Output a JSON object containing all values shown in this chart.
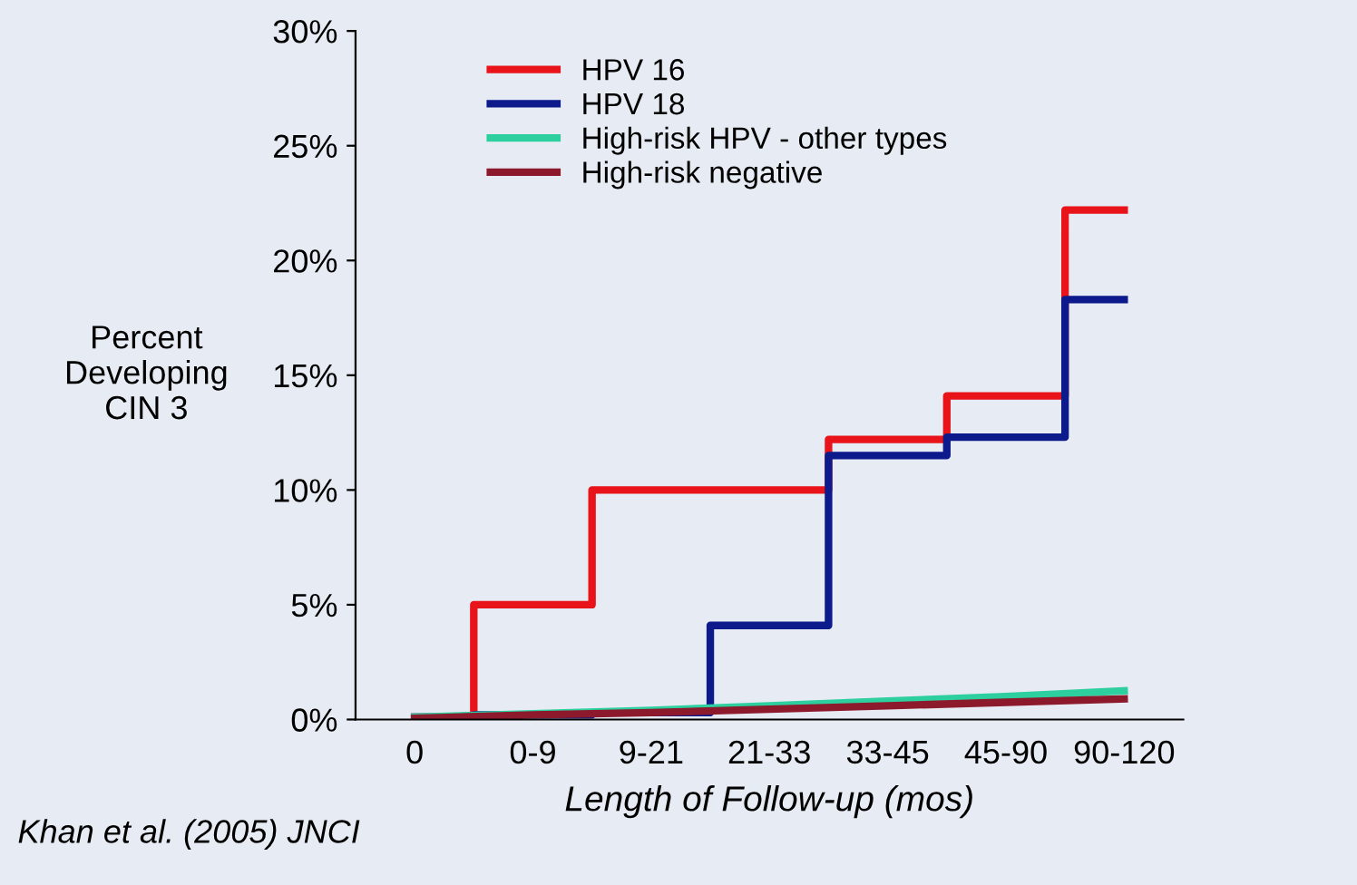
{
  "chart_data": {
    "type": "step",
    "ylabel": "Percent\nDeveloping\nCIN 3",
    "xlabel": "Length of Follow-up (mos)",
    "categories": [
      "0",
      "0-9",
      "9-21",
      "21-33",
      "33-45",
      "45-90",
      "90-120"
    ],
    "series": [
      {
        "name": "HPV 16",
        "color": "#e8141a",
        "values": [
          0.1,
          5,
          10,
          10,
          12.2,
          14.1,
          22.2
        ]
      },
      {
        "name": "HPV 18",
        "color": "#0c1a8c",
        "values": [
          0.1,
          0.2,
          0.3,
          4.1,
          11.5,
          12.3,
          18.3
        ]
      },
      {
        "name": "High-risk HPV - other types",
        "type": "line",
        "color": "#2ecf9f",
        "values": [
          0.1,
          0.25,
          0.4,
          0.6,
          0.8,
          1.0,
          1.25
        ]
      },
      {
        "name": "High-risk negative",
        "type": "line",
        "color": "#8c1a2c",
        "values": [
          0.05,
          0.2,
          0.3,
          0.45,
          0.6,
          0.75,
          0.9
        ]
      }
    ],
    "ylim": [
      0,
      30
    ],
    "yticks": [
      {
        "value": 0,
        "label": "0%"
      },
      {
        "value": 5,
        "label": "5%"
      },
      {
        "value": 10,
        "label": "10%"
      },
      {
        "value": 15,
        "label": "15%"
      },
      {
        "value": 20,
        "label": "20%"
      },
      {
        "value": 25,
        "label": "25%"
      },
      {
        "value": 30,
        "label": "30%"
      }
    ],
    "legend": "top left",
    "grid": false,
    "annotations": [
      "Khan et al. (2005) JNCI"
    ]
  }
}
